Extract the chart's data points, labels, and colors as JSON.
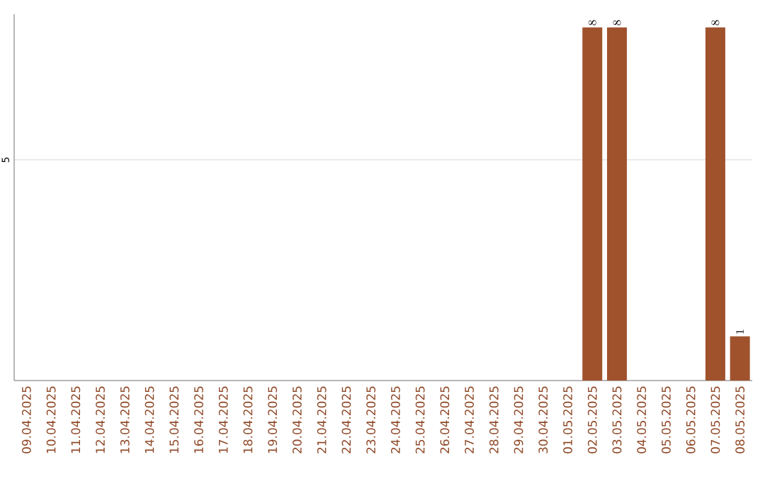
{
  "chart_data": {
    "type": "bar",
    "categories": [
      "09.04.2025",
      "10.04.2025",
      "11.04.2025",
      "12.04.2025",
      "13.04.2025",
      "14.04.2025",
      "15.04.2025",
      "16.04.2025",
      "17.04.2025",
      "18.04.2025",
      "19.04.2025",
      "20.04.2025",
      "21.04.2025",
      "22.04.2025",
      "23.04.2025",
      "24.04.2025",
      "25.04.2025",
      "26.04.2025",
      "27.04.2025",
      "28.04.2025",
      "29.04.2025",
      "30.04.2025",
      "01.05.2025",
      "02.05.2025",
      "03.05.2025",
      "04.05.2025",
      "05.05.2025",
      "06.05.2025",
      "07.05.2025",
      "08.05.2025"
    ],
    "values": [
      null,
      null,
      null,
      null,
      null,
      null,
      null,
      null,
      null,
      null,
      null,
      null,
      null,
      null,
      null,
      null,
      null,
      null,
      null,
      null,
      null,
      null,
      null,
      8,
      8,
      null,
      null,
      null,
      8,
      1
    ],
    "color": "#a0522d",
    "ylim": [
      0,
      8.3
    ],
    "yticks": [
      5
    ],
    "grid": "y",
    "data_labels": true
  }
}
